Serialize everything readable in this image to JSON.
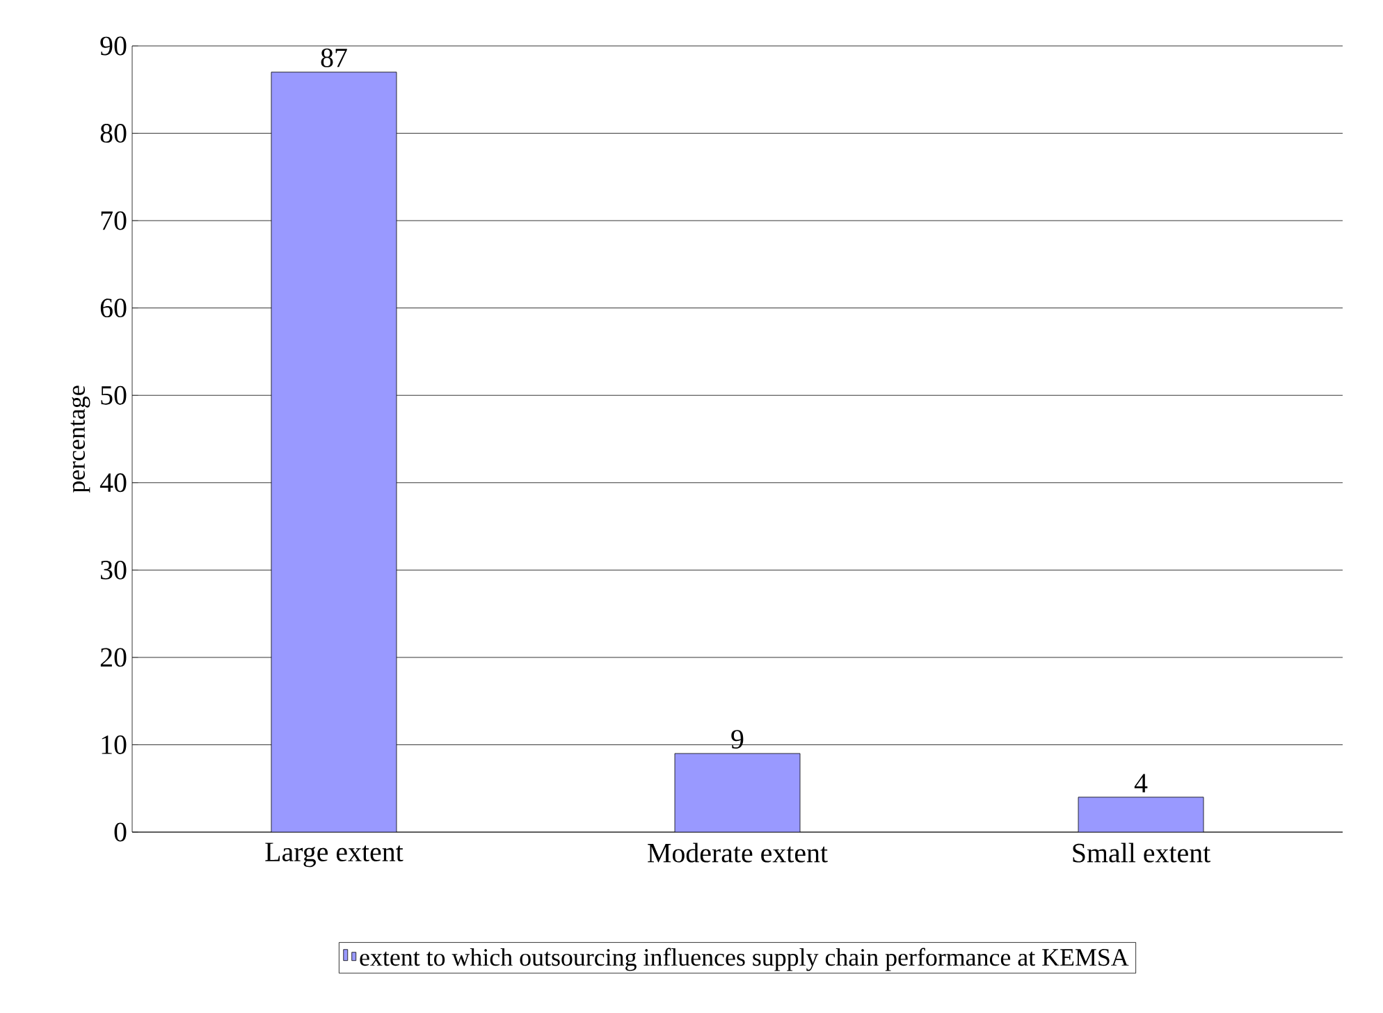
{
  "chart_data": {
    "type": "bar",
    "ylabel": "percentage",
    "categories": [
      "Large extent",
      "Moderate extent",
      "Small extent"
    ],
    "series": [
      {
        "name": "extent to which outsourcing influences supply chain performance at KEMSA",
        "color": "#9999ff",
        "values": [
          87,
          9,
          4
        ]
      }
    ],
    "ylim": [
      0,
      90
    ],
    "yticks": [
      0,
      10,
      20,
      30,
      40,
      50,
      60,
      70,
      80,
      90
    ],
    "grid": "y",
    "legend": "bottom",
    "data_labels": true
  }
}
